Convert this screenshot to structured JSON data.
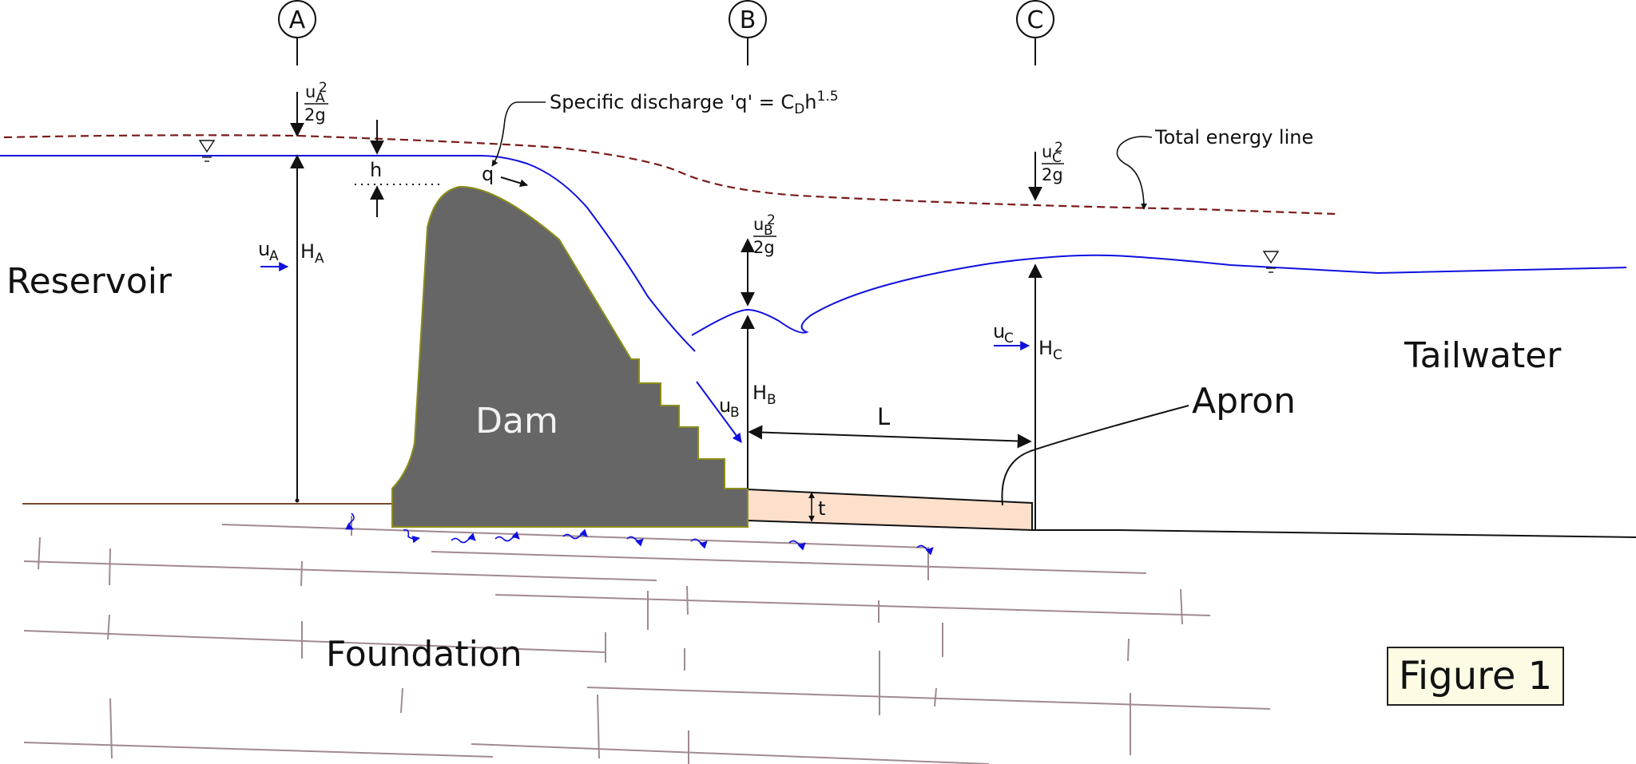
{
  "sections": {
    "a": "A",
    "b": "B",
    "c": "C"
  },
  "labels": {
    "reservoir": "Reservoir",
    "tailwater": "Tailwater",
    "dam": "Dam",
    "foundation": "Foundation",
    "apron": "Apron",
    "total_energy_line": "Total energy line",
    "specific_discharge_text": "Specific discharge 'q' = C",
    "specific_discharge_sub": "D",
    "specific_discharge_tail": "h",
    "specific_discharge_exp": "1.5",
    "h": "h",
    "q": "q",
    "L": "L",
    "t": "t",
    "g2": "2g",
    "two": "2",
    "u": "u",
    "H": "H",
    "sub_A": "A",
    "sub_B": "B",
    "sub_C": "C"
  },
  "figure_label": "Figure 1",
  "colors": {
    "dam_fill": "#666666",
    "dam_outline": "#8c8c1a",
    "water_line": "#1010e0",
    "energy_line": "#7a1a1a",
    "apron_fill": "#fde0cc",
    "foundation_lines": "#a08a90",
    "figure_box": "#fdfbe3"
  }
}
